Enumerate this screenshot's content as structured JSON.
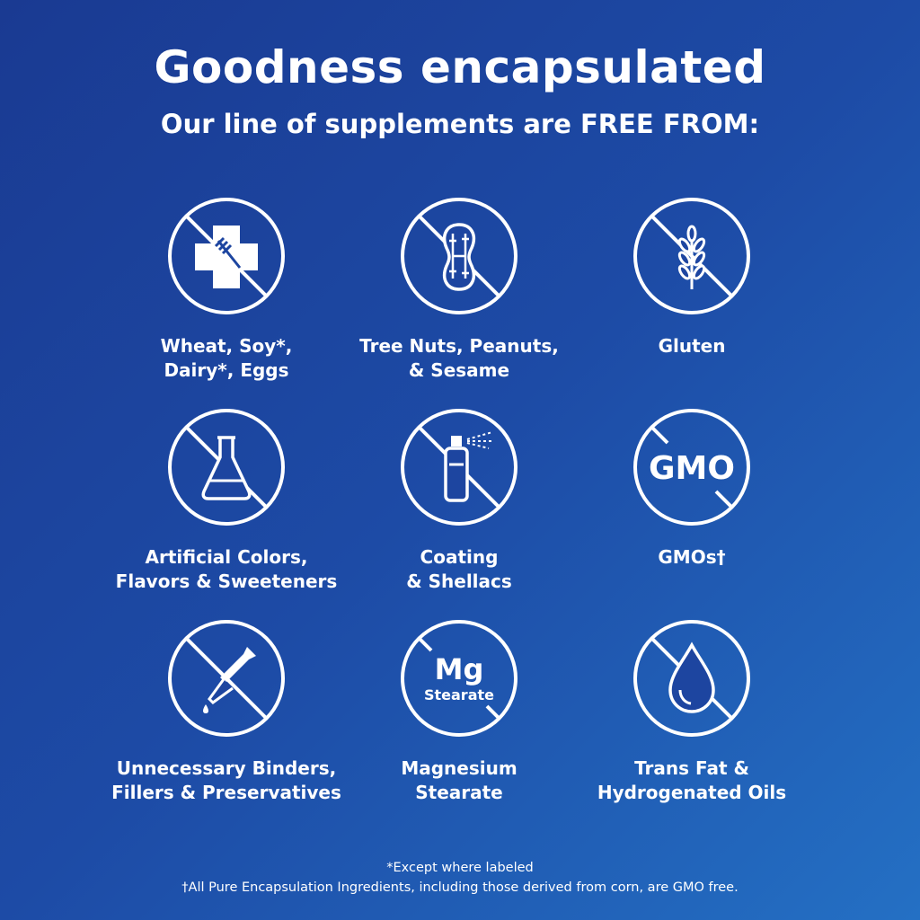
{
  "header": {
    "title": "Goodness encapsulated",
    "subtitle": "Our line of supplements are FREE FROM:"
  },
  "items": [
    {
      "icon": "no-allergen-icon",
      "line1": "Wheat, Soy*,",
      "line2": "Dairy*, Eggs"
    },
    {
      "icon": "no-peanut-icon",
      "line1": "Tree Nuts, Peanuts,",
      "line2": "& Sesame"
    },
    {
      "icon": "no-wheat-icon",
      "line1": "Gluten",
      "line2": ""
    },
    {
      "icon": "no-flask-icon",
      "line1": "Artificial Colors,",
      "line2": "Flavors & Sweeteners"
    },
    {
      "icon": "no-spray-icon",
      "line1": "Coating",
      "line2": "& Shellacs"
    },
    {
      "icon": "no-gmo-icon",
      "icon_text": "GMO",
      "line1": "GMOs†",
      "line2": ""
    },
    {
      "icon": "no-dropper-icon",
      "line1": "Unnecessary Binders,",
      "line2": "Fillers & Preservatives"
    },
    {
      "icon": "no-mg-stearate-icon",
      "icon_text": "Mg",
      "icon_subtext": "Stearate",
      "line1": "Magnesium",
      "line2": "Stearate"
    },
    {
      "icon": "no-oil-drop-icon",
      "line1": "Trans Fat &",
      "line2": "Hydrogenated Oils"
    }
  ],
  "footnotes": {
    "note1": "*Except where labeled",
    "note2": "†All Pure Encapsulation Ingredients, including those derived from corn, are GMO free."
  },
  "colors": {
    "background_start": "#1a3a92",
    "background_end": "#2470c4",
    "foreground": "#ffffff"
  }
}
